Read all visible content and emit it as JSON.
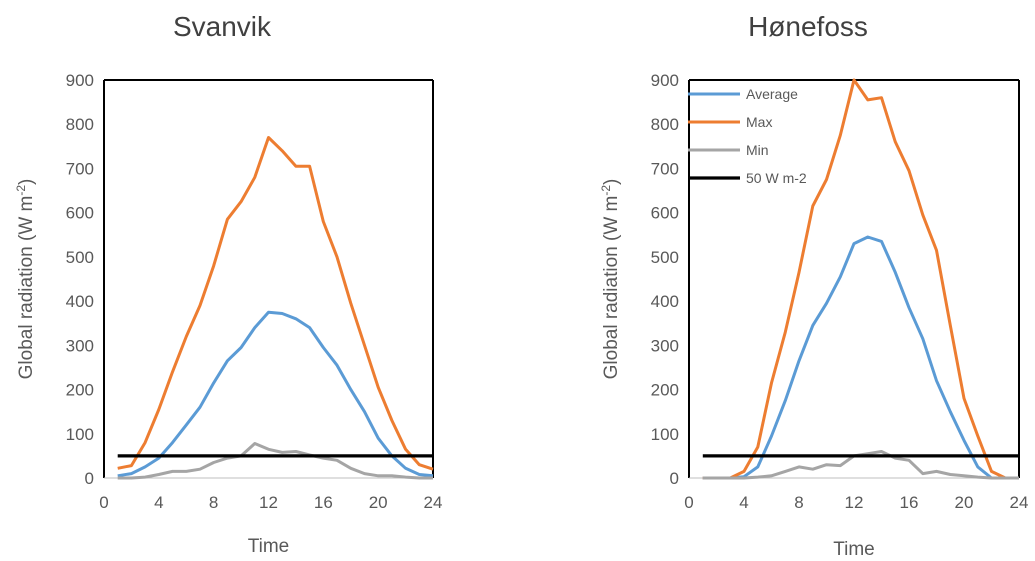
{
  "chart_data": [
    {
      "type": "line",
      "title": "Svanvik",
      "xlabel": "Time",
      "ylabel": "Global radiation (W m",
      "ylabel_sup": "-2",
      "ylabel_close": ")",
      "xlim": [
        0,
        24
      ],
      "ylim": [
        0,
        900
      ],
      "xticks": [
        "0",
        "4",
        "8",
        "12",
        "16",
        "20",
        "24"
      ],
      "yticks": [
        "0",
        "100",
        "200",
        "300",
        "400",
        "500",
        "600",
        "700",
        "800",
        "900"
      ],
      "grid": false,
      "legend": null,
      "x": [
        1,
        2,
        3,
        4,
        5,
        6,
        7,
        8,
        9,
        10,
        11,
        12,
        13,
        14,
        15,
        16,
        17,
        18,
        19,
        20,
        21,
        22,
        23,
        24
      ],
      "series": [
        {
          "name": "Average",
          "color": "#5B9BD5",
          "values": [
            5,
            10,
            25,
            45,
            80,
            120,
            160,
            215,
            265,
            295,
            340,
            375,
            372,
            360,
            340,
            295,
            255,
            200,
            150,
            90,
            50,
            22,
            8,
            5
          ]
        },
        {
          "name": "Max",
          "color": "#ED7D31",
          "values": [
            22,
            28,
            80,
            155,
            240,
            320,
            390,
            480,
            585,
            625,
            680,
            770,
            740,
            705,
            705,
            580,
            500,
            395,
            300,
            205,
            130,
            65,
            30,
            20
          ]
        },
        {
          "name": "Min",
          "color": "#A5A5A5",
          "values": [
            0,
            0,
            2,
            8,
            15,
            15,
            20,
            35,
            45,
            50,
            78,
            65,
            58,
            60,
            52,
            45,
            40,
            22,
            10,
            5,
            5,
            2,
            0,
            0
          ]
        },
        {
          "name": "50 W m-2",
          "color": "#000000",
          "values": [
            50,
            50,
            50,
            50,
            50,
            50,
            50,
            50,
            50,
            50,
            50,
            50,
            50,
            50,
            50,
            50,
            50,
            50,
            50,
            50,
            50,
            50,
            50,
            50
          ]
        }
      ]
    },
    {
      "type": "line",
      "title": "Hønefoss",
      "xlabel": "Time",
      "ylabel": "Global radiation (W m",
      "ylabel_sup": "-2",
      "ylabel_close": ")",
      "xlim": [
        0,
        24
      ],
      "ylim": [
        0,
        900
      ],
      "xticks": [
        "0",
        "4",
        "8",
        "12",
        "16",
        "20",
        "24"
      ],
      "yticks": [
        "0",
        "100",
        "200",
        "300",
        "400",
        "500",
        "600",
        "700",
        "800",
        "900"
      ],
      "grid": false,
      "legend": "top-left",
      "x": [
        1,
        2,
        3,
        4,
        5,
        6,
        7,
        8,
        9,
        10,
        11,
        12,
        13,
        14,
        15,
        16,
        17,
        18,
        19,
        20,
        21,
        22,
        23,
        24
      ],
      "series": [
        {
          "name": "Average",
          "color": "#5B9BD5",
          "values": [
            0,
            0,
            0,
            3,
            25,
            95,
            175,
            265,
            345,
            395,
            455,
            530,
            545,
            535,
            465,
            385,
            315,
            220,
            150,
            85,
            25,
            0,
            0,
            0
          ]
        },
        {
          "name": "Max",
          "color": "#ED7D31",
          "values": [
            0,
            0,
            0,
            15,
            70,
            215,
            330,
            465,
            615,
            675,
            775,
            900,
            855,
            860,
            760,
            695,
            595,
            515,
            345,
            180,
            95,
            15,
            0,
            0
          ]
        },
        {
          "name": "Min",
          "color": "#A5A5A5",
          "values": [
            0,
            0,
            0,
            0,
            2,
            5,
            15,
            25,
            20,
            30,
            28,
            50,
            55,
            60,
            45,
            40,
            10,
            15,
            8,
            5,
            2,
            0,
            0,
            0
          ]
        },
        {
          "name": "50 W m-2",
          "color": "#000000",
          "values": [
            50,
            50,
            50,
            50,
            50,
            50,
            50,
            50,
            50,
            50,
            50,
            50,
            50,
            50,
            50,
            50,
            50,
            50,
            50,
            50,
            50,
            50,
            50,
            50
          ]
        }
      ]
    }
  ]
}
